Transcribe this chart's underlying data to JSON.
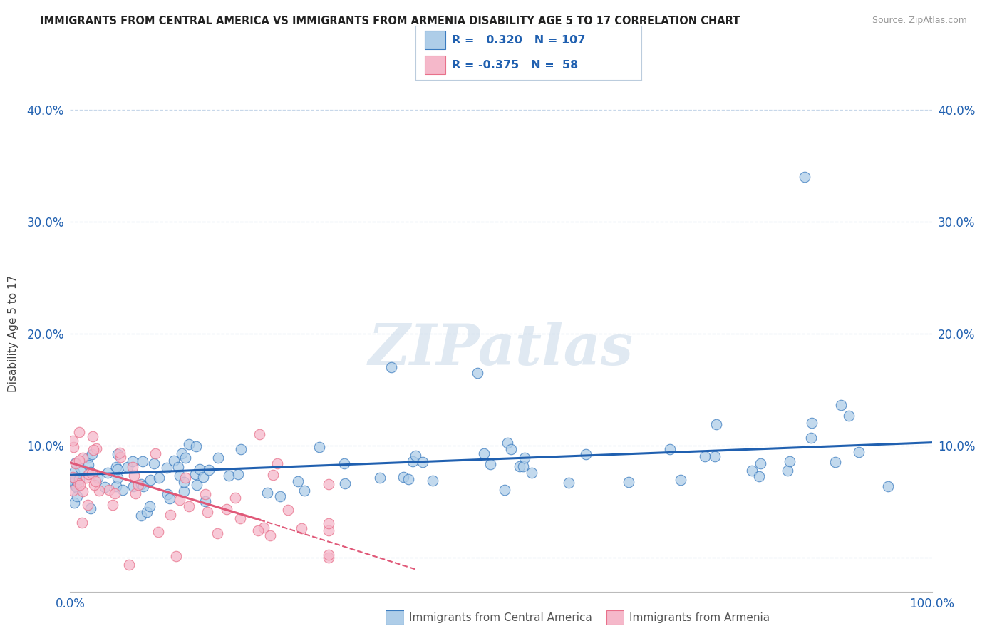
{
  "title": "IMMIGRANTS FROM CENTRAL AMERICA VS IMMIGRANTS FROM ARMENIA DISABILITY AGE 5 TO 17 CORRELATION CHART",
  "source": "Source: ZipAtlas.com",
  "ylabel": "Disability Age 5 to 17",
  "watermark": "ZIPatlas",
  "xlim": [
    0.0,
    1.0
  ],
  "ylim": [
    -0.03,
    0.43
  ],
  "yticks": [
    0.0,
    0.1,
    0.2,
    0.3,
    0.4
  ],
  "ytick_labels": [
    "",
    "10.0%",
    "20.0%",
    "30.0%",
    "40.0%"
  ],
  "xtick_labels": [
    "0.0%",
    "100.0%"
  ],
  "legend1_R": "0.320",
  "legend1_N": "107",
  "legend2_R": "-0.375",
  "legend2_N": "58",
  "blue_fill": "#aecde8",
  "pink_fill": "#f5b8ca",
  "blue_edge": "#3a7bbf",
  "pink_edge": "#e8708a",
  "line_blue": "#2060b0",
  "line_pink": "#e05878",
  "grid_color": "#c8d8ea",
  "bg": "#ffffff",
  "legend_border": "#bbccdd",
  "bottom_legend_label1": "Immigrants from Central America",
  "bottom_legend_label2": "Immigrants from Armenia"
}
